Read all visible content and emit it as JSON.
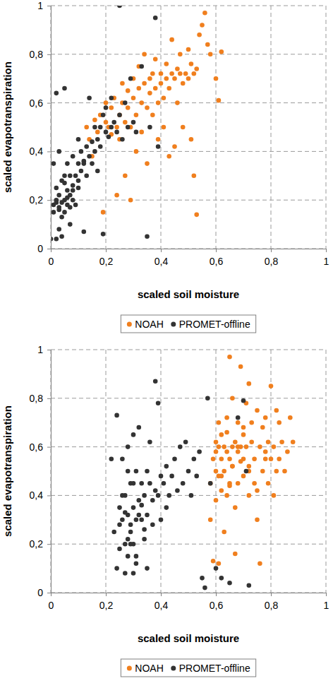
{
  "chart_data": [
    {
      "type": "scatter",
      "x_label": "scaled soil moisture",
      "y_label": "scaled evapotranspiration",
      "xlim": [
        0,
        1
      ],
      "ylim": [
        0,
        1
      ],
      "xticks": [
        0,
        {
          "value": 0.2,
          "label": "0,2"
        },
        {
          "value": 0.4,
          "label": "0,4"
        },
        {
          "value": 0.6,
          "label": "0,6"
        },
        {
          "value": 0.8,
          "label": "0,8"
        },
        1
      ],
      "yticks": [
        0,
        {
          "value": 0.2,
          "label": "0,2"
        },
        {
          "value": 0.4,
          "label": "0,4"
        },
        {
          "value": 0.6,
          "label": "0,6"
        },
        {
          "value": 0.8,
          "label": "0,8"
        },
        1
      ],
      "grid": true,
      "legend": "bottom",
      "marker": "circle",
      "series": [
        {
          "name": "NOAH",
          "color": "#f07f1e",
          "x": [
            0.13,
            0.14,
            0.15,
            0.16,
            0.17,
            0.18,
            0.19,
            0.2,
            0.2,
            0.21,
            0.22,
            0.22,
            0.23,
            0.24,
            0.24,
            0.25,
            0.25,
            0.26,
            0.26,
            0.27,
            0.27,
            0.28,
            0.28,
            0.29,
            0.29,
            0.3,
            0.3,
            0.31,
            0.31,
            0.32,
            0.32,
            0.33,
            0.33,
            0.34,
            0.34,
            0.35,
            0.35,
            0.36,
            0.36,
            0.37,
            0.37,
            0.38,
            0.38,
            0.39,
            0.39,
            0.4,
            0.4,
            0.41,
            0.41,
            0.42,
            0.42,
            0.43,
            0.43,
            0.44,
            0.44,
            0.45,
            0.45,
            0.46,
            0.46,
            0.47,
            0.47,
            0.48,
            0.48,
            0.49,
            0.5,
            0.5,
            0.51,
            0.51,
            0.52,
            0.52,
            0.53,
            0.53,
            0.54,
            0.55,
            0.56,
            0.57,
            0.58,
            0.6,
            0.61,
            0.62
          ],
          "values": [
            0.5,
            0.45,
            0.38,
            0.53,
            0.48,
            0.55,
            0.15,
            0.52,
            0.6,
            0.5,
            0.47,
            0.58,
            0.62,
            0.5,
            0.22,
            0.55,
            0.45,
            0.6,
            0.68,
            0.52,
            0.3,
            0.58,
            0.65,
            0.5,
            0.2,
            0.62,
            0.7,
            0.55,
            0.4,
            0.66,
            0.75,
            0.6,
            0.48,
            0.68,
            0.8,
            0.58,
            0.35,
            0.64,
            0.7,
            0.72,
            0.55,
            0.66,
            0.78,
            0.6,
            0.45,
            0.68,
            0.72,
            0.62,
            0.5,
            0.7,
            0.76,
            0.66,
            0.38,
            0.72,
            0.86,
            0.7,
            0.42,
            0.74,
            0.6,
            0.72,
            0.8,
            0.68,
            0.5,
            0.72,
            0.82,
            0.7,
            0.76,
            0.45,
            0.72,
            0.3,
            0.74,
            0.14,
            0.88,
            0.92,
            0.97,
            0.84,
            0.8,
            0.7,
            0.61,
            0.81
          ]
        },
        {
          "name": "PROMET-offline",
          "color": "#333333",
          "x": [
            0.01,
            0.01,
            0.02,
            0.02,
            0.02,
            0.03,
            0.03,
            0.03,
            0.04,
            0.04,
            0.04,
            0.05,
            0.05,
            0.05,
            0.06,
            0.06,
            0.06,
            0.07,
            0.07,
            0.07,
            0.08,
            0.08,
            0.08,
            0.09,
            0.09,
            0.1,
            0.1,
            0.1,
            0.11,
            0.11,
            0.12,
            0.12,
            0.13,
            0.13,
            0.14,
            0.14,
            0.15,
            0.15,
            0.16,
            0.16,
            0.17,
            0.17,
            0.18,
            0.18,
            0.19,
            0.19,
            0.2,
            0.2,
            0.21,
            0.22,
            0.22,
            0.23,
            0.24,
            0.25,
            0.25,
            0.26,
            0.27,
            0.28,
            0.29,
            0.3,
            0.31,
            0.33,
            0.35,
            0.36,
            0.38,
            0.39,
            0.02,
            0.03,
            0.05,
            0.06,
            0.01,
            0.04,
            0.08,
            0.12,
            0.07,
            0.0,
            0.02,
            0.1,
            0.03,
            0.05
          ],
          "values": [
            0.18,
            0.35,
            0.2,
            0.04,
            0.64,
            0.22,
            0.16,
            0.4,
            0.19,
            0.28,
            0.05,
            0.2,
            0.15,
            0.66,
            0.24,
            0.18,
            0.35,
            0.22,
            0.3,
            0.1,
            0.26,
            0.2,
            0.38,
            0.3,
            0.18,
            0.35,
            0.28,
            0.45,
            0.32,
            0.4,
            0.36,
            0.07,
            0.42,
            0.3,
            0.38,
            0.62,
            0.44,
            0.35,
            0.4,
            0.5,
            0.45,
            0.32,
            0.5,
            0.42,
            0.06,
            0.55,
            0.48,
            0.58,
            0.46,
            0.5,
            0.62,
            0.52,
            0.48,
            0.55,
            1.0,
            0.45,
            0.6,
            0.5,
            0.7,
            0.52,
            0.48,
            0.75,
            0.05,
            0.5,
            0.95,
            0.42,
            0.25,
            0.17,
            0.3,
            0.21,
            0.15,
            0.13,
            0.24,
            0.35,
            0.17,
            0.04,
            0.19,
            0.25,
            0.08,
            0.27
          ]
        }
      ]
    },
    {
      "type": "scatter",
      "x_label": "scaled soil moisture",
      "y_label": "scaled evapotranspiration",
      "xlim": [
        0,
        1
      ],
      "ylim": [
        0,
        1
      ],
      "xticks": [
        0,
        {
          "value": 0.2,
          "label": "0,2"
        },
        {
          "value": 0.4,
          "label": "0,4"
        },
        {
          "value": 0.6,
          "label": "0,6"
        },
        {
          "value": 0.8,
          "label": "0,8"
        },
        1
      ],
      "yticks": [
        0,
        {
          "value": 0.2,
          "label": "0,2"
        },
        {
          "value": 0.4,
          "label": "0,4"
        },
        {
          "value": 0.6,
          "label": "0,6"
        },
        {
          "value": 0.8,
          "label": "0,8"
        },
        1
      ],
      "grid": true,
      "legend": "bottom",
      "marker": "circle",
      "series": [
        {
          "name": "NOAH",
          "color": "#f07f1e",
          "x": [
            0.58,
            0.58,
            0.59,
            0.59,
            0.6,
            0.6,
            0.6,
            0.61,
            0.61,
            0.61,
            0.62,
            0.62,
            0.62,
            0.63,
            0.63,
            0.63,
            0.64,
            0.64,
            0.64,
            0.65,
            0.65,
            0.65,
            0.66,
            0.66,
            0.66,
            0.67,
            0.67,
            0.67,
            0.68,
            0.68,
            0.68,
            0.69,
            0.69,
            0.7,
            0.7,
            0.7,
            0.71,
            0.71,
            0.72,
            0.72,
            0.72,
            0.73,
            0.73,
            0.74,
            0.74,
            0.75,
            0.75,
            0.76,
            0.76,
            0.77,
            0.77,
            0.78,
            0.78,
            0.79,
            0.79,
            0.8,
            0.8,
            0.81,
            0.81,
            0.82,
            0.82,
            0.83,
            0.83,
            0.84,
            0.85,
            0.86,
            0.87,
            0.88,
            0.6,
            0.62,
            0.64,
            0.66,
            0.68,
            0.7,
            0.72,
            0.75,
            0.65,
            0.78,
            0.69,
            0.61
          ],
          "values": [
            0.45,
            0.3,
            0.55,
            0.13,
            0.5,
            0.62,
            0.38,
            0.48,
            0.7,
            0.12,
            0.55,
            0.42,
            0.65,
            0.5,
            0.6,
            0.25,
            0.58,
            0.72,
            0.4,
            0.55,
            0.97,
            0.45,
            0.6,
            0.52,
            0.8,
            0.62,
            0.35,
            0.16,
            0.58,
            0.7,
            0.45,
            0.6,
            0.93,
            0.55,
            0.65,
            0.48,
            0.78,
            0.6,
            0.52,
            0.86,
            0.4,
            0.62,
            0.7,
            0.55,
            0.45,
            0.75,
            0.3,
            0.6,
            0.12,
            0.68,
            0.5,
            0.72,
            0.55,
            0.62,
            0.45,
            0.55,
            0.85,
            0.6,
            0.4,
            0.75,
            0.5,
            0.7,
            0.55,
            0.62,
            0.5,
            0.58,
            0.72,
            0.62,
            0.58,
            0.48,
            0.66,
            0.52,
            0.6,
            0.68,
            0.5,
            0.42,
            0.44,
            0.58,
            0.54,
            0.6
          ]
        },
        {
          "name": "PROMET-offline",
          "color": "#333333",
          "x": [
            0.22,
            0.23,
            0.24,
            0.24,
            0.25,
            0.25,
            0.26,
            0.26,
            0.27,
            0.27,
            0.27,
            0.28,
            0.28,
            0.28,
            0.29,
            0.29,
            0.29,
            0.3,
            0.3,
            0.3,
            0.31,
            0.31,
            0.31,
            0.32,
            0.32,
            0.33,
            0.33,
            0.34,
            0.34,
            0.35,
            0.35,
            0.36,
            0.36,
            0.37,
            0.37,
            0.38,
            0.38,
            0.39,
            0.39,
            0.4,
            0.4,
            0.41,
            0.42,
            0.42,
            0.43,
            0.44,
            0.45,
            0.46,
            0.47,
            0.48,
            0.49,
            0.5,
            0.51,
            0.52,
            0.53,
            0.54,
            0.55,
            0.56,
            0.57,
            0.58,
            0.6,
            0.62,
            0.65,
            0.68,
            0.7,
            0.71,
            0.72,
            0.26,
            0.28,
            0.3,
            0.32,
            0.34,
            0.29,
            0.31,
            0.27,
            0.33,
            0.25,
            0.35,
            0.3,
            0.28
          ],
          "values": [
            0.55,
            0.25,
            0.73,
            0.1,
            0.35,
            0.18,
            0.3,
            0.55,
            0.2,
            0.4,
            0.08,
            0.32,
            0.6,
            0.15,
            0.25,
            0.45,
            0.28,
            0.35,
            0.65,
            0.2,
            0.3,
            0.5,
            0.12,
            0.38,
            0.68,
            0.3,
            0.45,
            0.4,
            0.22,
            0.5,
            0.32,
            0.45,
            0.62,
            0.38,
            0.28,
            0.42,
            0.87,
            0.4,
            0.78,
            0.48,
            0.3,
            0.45,
            0.52,
            0.35,
            0.4,
            0.48,
            0.55,
            0.42,
            0.6,
            0.45,
            0.62,
            0.5,
            0.4,
            0.55,
            0.48,
            0.58,
            0.06,
            0.02,
            0.8,
            0.45,
            0.1,
            0.06,
            0.04,
            0.72,
            0.79,
            0.5,
            0.03,
            0.4,
            0.22,
            0.45,
            0.32,
            0.26,
            0.2,
            0.15,
            0.33,
            0.36,
            0.28,
            0.1,
            0.08,
            0.5
          ]
        }
      ]
    }
  ]
}
